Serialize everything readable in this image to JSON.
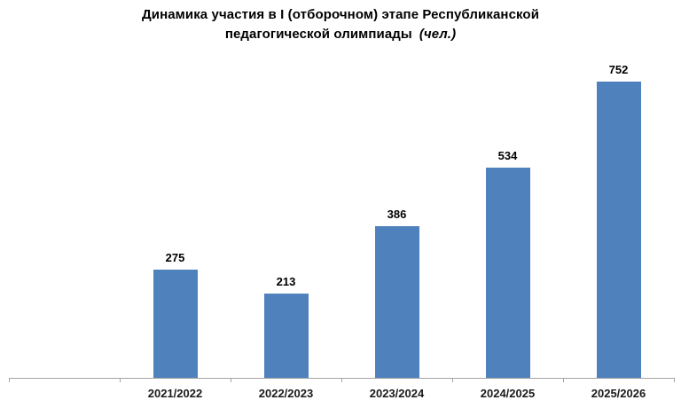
{
  "title": {
    "line1": "Динамика участия в I (отборочном) этапе Республиканской",
    "line2_main": "педагогической олимпиады",
    "line2_units": "(чел.)"
  },
  "chart_data": {
    "type": "bar",
    "title": "Динамика участия в I (отборочном) этапе Республиканской педагогической олимпиады (чел.)",
    "categories": [
      "2021/2022",
      "2022/2023",
      "2023/2024",
      "2024/2025",
      "2025/2026"
    ],
    "values": [
      275,
      213,
      386,
      534,
      752
    ],
    "xlabel": "",
    "ylabel": "",
    "ylim": [
      0,
      760
    ],
    "grid": false,
    "legend": "none",
    "data_labels": true,
    "bar_color": "#4f81bd",
    "axis_color": "#a3a3a3",
    "label_color": "#000000",
    "leading_empty_category": true
  }
}
